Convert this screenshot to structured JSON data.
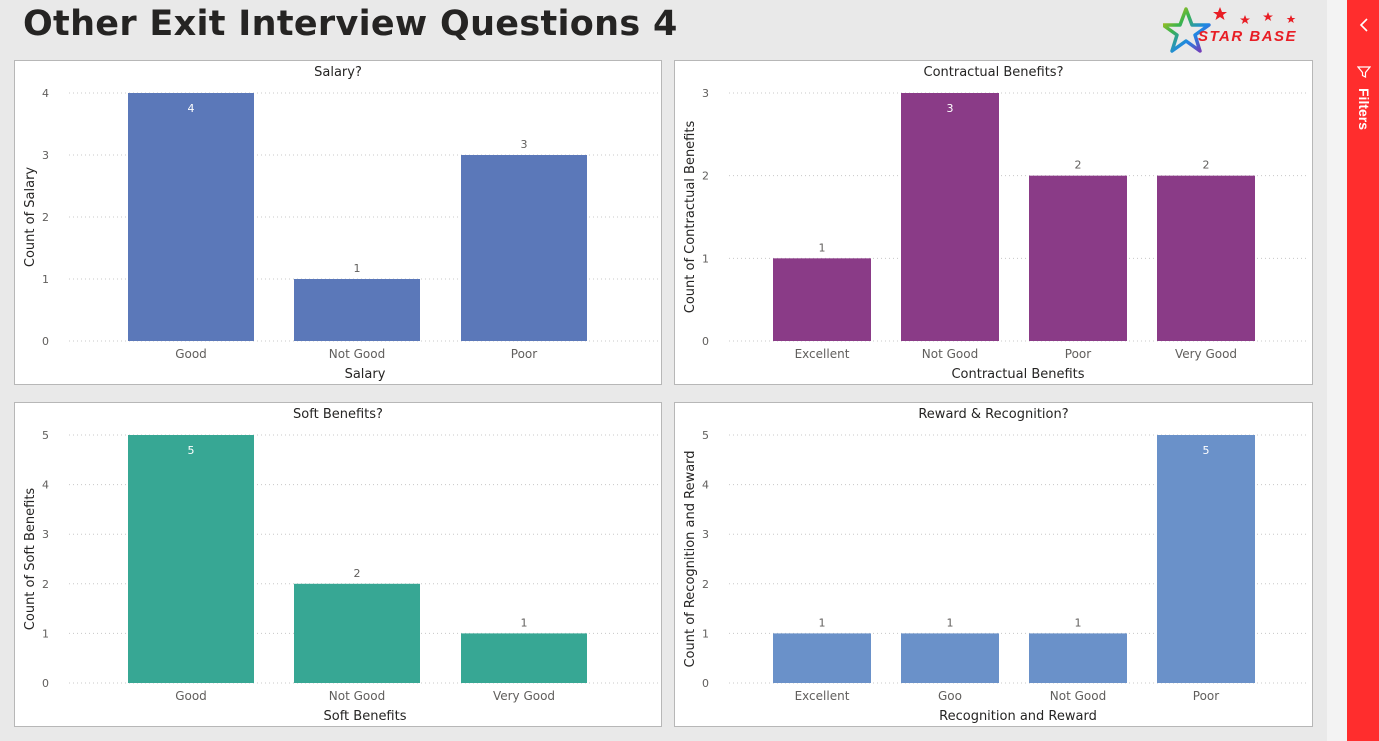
{
  "page": {
    "title": "Other Exit Interview Questions 4"
  },
  "logo": {
    "text": "STAR BASE",
    "accent": "#e81e25",
    "icon": "star-logo-icon"
  },
  "filters_pane": {
    "label": "Filters",
    "background": "#ff2d2d",
    "collapse_icon": "chevron-left-icon",
    "filter_icon": "filter-icon"
  },
  "chart_data": [
    {
      "type": "bar",
      "title": "Salary?",
      "xlabel": "Salary",
      "ylabel": "Count of Salary",
      "categories": [
        "Good",
        "Not Good",
        "Poor"
      ],
      "values": [
        4,
        1,
        3
      ],
      "ylim": [
        0,
        4
      ],
      "yticks": [
        0,
        1,
        2,
        3,
        4
      ],
      "color": "#5b78b9",
      "grid": true
    },
    {
      "type": "bar",
      "title": "Contractual Benefits?",
      "xlabel": "Contractual Benefits",
      "ylabel": "Count of Contractual Benefits",
      "categories": [
        "Excellent",
        "Not Good",
        "Poor",
        "Very Good"
      ],
      "values": [
        1,
        3,
        2,
        2
      ],
      "ylim": [
        0,
        3
      ],
      "yticks": [
        0,
        1,
        2,
        3
      ],
      "color": "#8a3b87",
      "grid": true
    },
    {
      "type": "bar",
      "title": "Soft Benefits?",
      "xlabel": "Soft Benefits",
      "ylabel": "Count of Soft Benefits",
      "categories": [
        "Good",
        "Not Good",
        "Very Good"
      ],
      "values": [
        5,
        2,
        1
      ],
      "ylim": [
        0,
        5
      ],
      "yticks": [
        0,
        1,
        2,
        3,
        4,
        5
      ],
      "color": "#37a794",
      "grid": true
    },
    {
      "type": "bar",
      "title": "Reward & Recognition?",
      "xlabel": "Recognition and Reward",
      "ylabel": "Count of Recognition and Reward",
      "categories": [
        "Excellent",
        "Goo",
        "Not Good",
        "Poor"
      ],
      "values": [
        1,
        1,
        1,
        5
      ],
      "ylim": [
        0,
        5
      ],
      "yticks": [
        0,
        1,
        2,
        3,
        4,
        5
      ],
      "color": "#6a91c9",
      "grid": true
    }
  ]
}
